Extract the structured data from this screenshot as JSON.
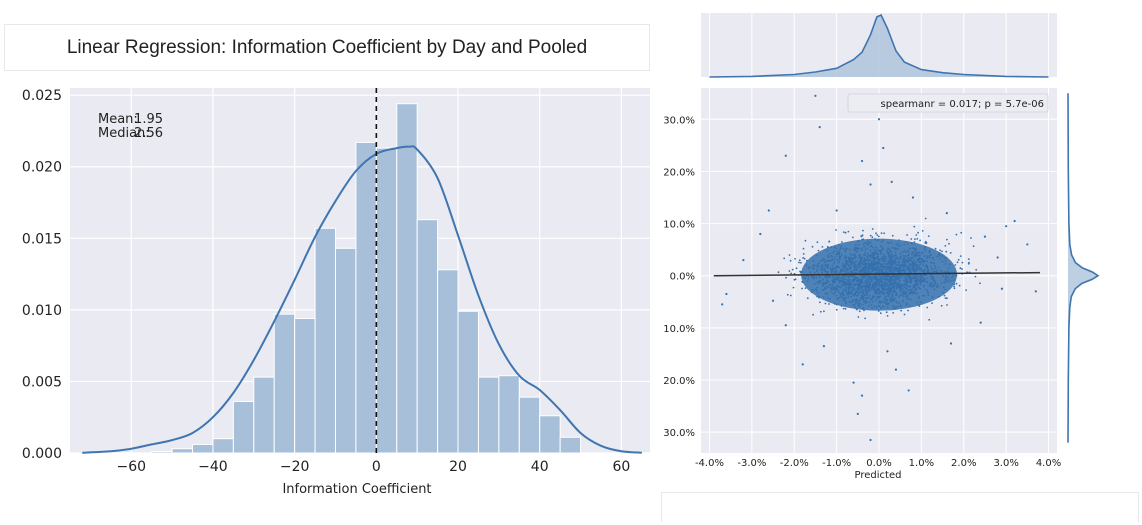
{
  "title": "Linear Regression: Information Coefficient by Day and Pooled",
  "colors": {
    "panel": "#eaeaf2",
    "bar": "#a7bfd9",
    "line": "#3f75b0",
    "scatter": "#3470ad",
    "regline": "#333333"
  },
  "chart_data": [
    {
      "type": "bar",
      "subtype": "histogram-with-kde",
      "xlabel": "Information Coefficient",
      "ylabel": "",
      "xlim": [
        -75,
        67
      ],
      "ylim": [
        0,
        0.0255
      ],
      "xticks": [
        -60,
        -40,
        -20,
        0,
        20,
        40,
        60
      ],
      "xtick_labels": [
        "−60",
        "−40",
        "−20",
        "0",
        "20",
        "40",
        "60"
      ],
      "yticks": [
        0,
        0.005,
        0.01,
        0.015,
        0.02,
        0.025
      ],
      "ytick_labels": [
        "0.000",
        "0.005",
        "0.010",
        "0.015",
        "0.020",
        "0.025"
      ],
      "grid": true,
      "bins": [
        {
          "x0": -55,
          "x1": -50,
          "value": 0.0001
        },
        {
          "x0": -50,
          "x1": -45,
          "value": 0.0003
        },
        {
          "x0": -45,
          "x1": -40,
          "value": 0.0006
        },
        {
          "x0": -40,
          "x1": -35,
          "value": 0.001
        },
        {
          "x0": -35,
          "x1": -30,
          "value": 0.0036
        },
        {
          "x0": -30,
          "x1": -25,
          "value": 0.0053
        },
        {
          "x0": -25,
          "x1": -20,
          "value": 0.0097
        },
        {
          "x0": -20,
          "x1": -15,
          "value": 0.0094
        },
        {
          "x0": -15,
          "x1": -10,
          "value": 0.0157
        },
        {
          "x0": -10,
          "x1": -5,
          "value": 0.0143
        },
        {
          "x0": -5,
          "x1": 0,
          "value": 0.0217
        },
        {
          "x0": 0,
          "x1": 5,
          "value": 0.0213
        },
        {
          "x0": 5,
          "x1": 10,
          "value": 0.0244
        },
        {
          "x0": 10,
          "x1": 15,
          "value": 0.0163
        },
        {
          "x0": 15,
          "x1": 20,
          "value": 0.0128
        },
        {
          "x0": 20,
          "x1": 25,
          "value": 0.0099
        },
        {
          "x0": 25,
          "x1": 30,
          "value": 0.0053
        },
        {
          "x0": 30,
          "x1": 35,
          "value": 0.0054
        },
        {
          "x0": 35,
          "x1": 40,
          "value": 0.0039
        },
        {
          "x0": 40,
          "x1": 45,
          "value": 0.0026
        },
        {
          "x0": 45,
          "x1": 50,
          "value": 0.0011
        }
      ],
      "kde": {
        "x": [
          -72,
          -65,
          -60,
          -55,
          -50,
          -45,
          -40,
          -35,
          -30,
          -25,
          -20,
          -15,
          -10,
          -5,
          0,
          5,
          8,
          10,
          15,
          20,
          25,
          30,
          35,
          40,
          45,
          50,
          55,
          60,
          65
        ],
        "y": [
          2e-05,
          0.00012,
          0.0003,
          0.0006,
          0.0009,
          0.0014,
          0.0025,
          0.0042,
          0.0065,
          0.0092,
          0.0121,
          0.0151,
          0.0176,
          0.0197,
          0.0209,
          0.0213,
          0.0214,
          0.0212,
          0.0192,
          0.0152,
          0.011,
          0.0076,
          0.0054,
          0.0044,
          0.003,
          0.0014,
          0.0005,
          0.00012,
          2e-05
        ]
      },
      "vline": {
        "x": 0,
        "style": "dashed"
      },
      "annotation": {
        "mean_label": "Mean:",
        "mean_value": "1.95",
        "median_label": "Median:",
        "median_value": "2.56"
      }
    },
    {
      "type": "scatter",
      "subtype": "jointplot-with-regression",
      "xlabel": "Predicted",
      "ylabel": "",
      "xlim": [
        -4.2,
        4.2
      ],
      "ylim": [
        -34,
        36
      ],
      "xticks": [
        -4,
        -3,
        -2,
        -1,
        0,
        1,
        2,
        3,
        4
      ],
      "xtick_labels": [
        "-4.0%",
        "-3.0%",
        "-2.0%",
        "-1.0%",
        "0.0%",
        "1.0%",
        "2.0%",
        "3.0%",
        "4.0%"
      ],
      "yticks": [
        30,
        20,
        10,
        0,
        -10,
        -20,
        -30
      ],
      "ytick_labels": [
        "30.0%",
        "20.0%",
        "10.0%",
        "0.0%",
        "10.0%",
        "20.0%",
        "30.0%"
      ],
      "grid": true,
      "legend_text": "spearmanr = 0.017; p = 5.7e-06",
      "legend_position": "top-right",
      "regression": {
        "x": [
          -3.9,
          3.8
        ],
        "y": [
          0.0,
          0.6
        ]
      },
      "points": [
        [
          -1.5,
          34.5
        ],
        [
          -1.4,
          28.5
        ],
        [
          -2.2,
          23.0
        ],
        [
          0.0,
          30.0
        ],
        [
          0.1,
          24.5
        ],
        [
          -0.4,
          22.0
        ],
        [
          -0.2,
          17.5
        ],
        [
          0.3,
          18.0
        ],
        [
          -2.6,
          12.5
        ],
        [
          3.2,
          10.5
        ],
        [
          3.0,
          9.5
        ],
        [
          3.5,
          6.0
        ],
        [
          -3.6,
          -3.5
        ],
        [
          -3.7,
          -5.5
        ],
        [
          2.8,
          3.5
        ],
        [
          2.9,
          -2.5
        ],
        [
          -2.5,
          -4.8
        ],
        [
          -1.8,
          -17.0
        ],
        [
          -0.6,
          -20.5
        ],
        [
          -0.4,
          -23.0
        ],
        [
          -0.5,
          -26.5
        ],
        [
          -0.2,
          -31.5
        ],
        [
          0.2,
          -14.5
        ],
        [
          0.4,
          -18.0
        ],
        [
          3.7,
          -3.0
        ],
        [
          -3.2,
          3.0
        ],
        [
          1.6,
          12.0
        ],
        [
          -1.0,
          12.5
        ],
        [
          0.8,
          15.0
        ],
        [
          -2.8,
          8.0
        ],
        [
          2.4,
          -9.0
        ],
        [
          -2.2,
          -9.5
        ],
        [
          0.7,
          -22.0
        ],
        [
          1.7,
          -13.0
        ],
        [
          -1.3,
          -13.5
        ],
        [
          2.5,
          7.5
        ]
      ],
      "marginal_top": {
        "x": [
          -4.0,
          -3.0,
          -2.0,
          -1.5,
          -1.0,
          -0.6,
          -0.4,
          -0.2,
          -0.05,
          0.05,
          0.2,
          0.4,
          0.6,
          1.0,
          1.5,
          2.0,
          3.0,
          4.0
        ],
        "y": [
          0.0,
          0.01,
          0.04,
          0.08,
          0.14,
          0.28,
          0.4,
          0.68,
          0.97,
          1.0,
          0.78,
          0.42,
          0.24,
          0.12,
          0.07,
          0.04,
          0.01,
          0.0
        ]
      },
      "marginal_right": {
        "y": [
          35,
          20,
          10,
          6,
          4,
          2.5,
          1.5,
          0.7,
          0,
          -0.7,
          -1.5,
          -2.5,
          -4,
          -6,
          -10,
          -20,
          -32
        ],
        "x": [
          0.0,
          0.01,
          0.03,
          0.06,
          0.12,
          0.25,
          0.48,
          0.82,
          1.0,
          0.8,
          0.46,
          0.24,
          0.11,
          0.06,
          0.03,
          0.01,
          0.0
        ]
      }
    }
  ]
}
